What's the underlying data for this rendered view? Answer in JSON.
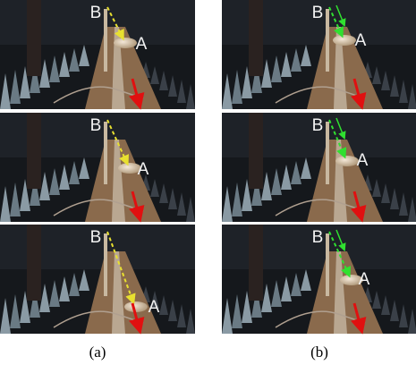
{
  "figure": {
    "columns": [
      {
        "caption": "(a)",
        "panels": [
          {
            "label_b": "B",
            "label_a": "A"
          },
          {
            "label_b": "B",
            "label_a": "A"
          },
          {
            "label_b": "B",
            "label_a": "A"
          }
        ]
      },
      {
        "caption": "(b)",
        "panels": [
          {
            "label_b": "B",
            "label_a": "A"
          },
          {
            "label_b": "B",
            "label_a": "A"
          },
          {
            "label_b": "B",
            "label_a": "A"
          }
        ]
      }
    ]
  }
}
